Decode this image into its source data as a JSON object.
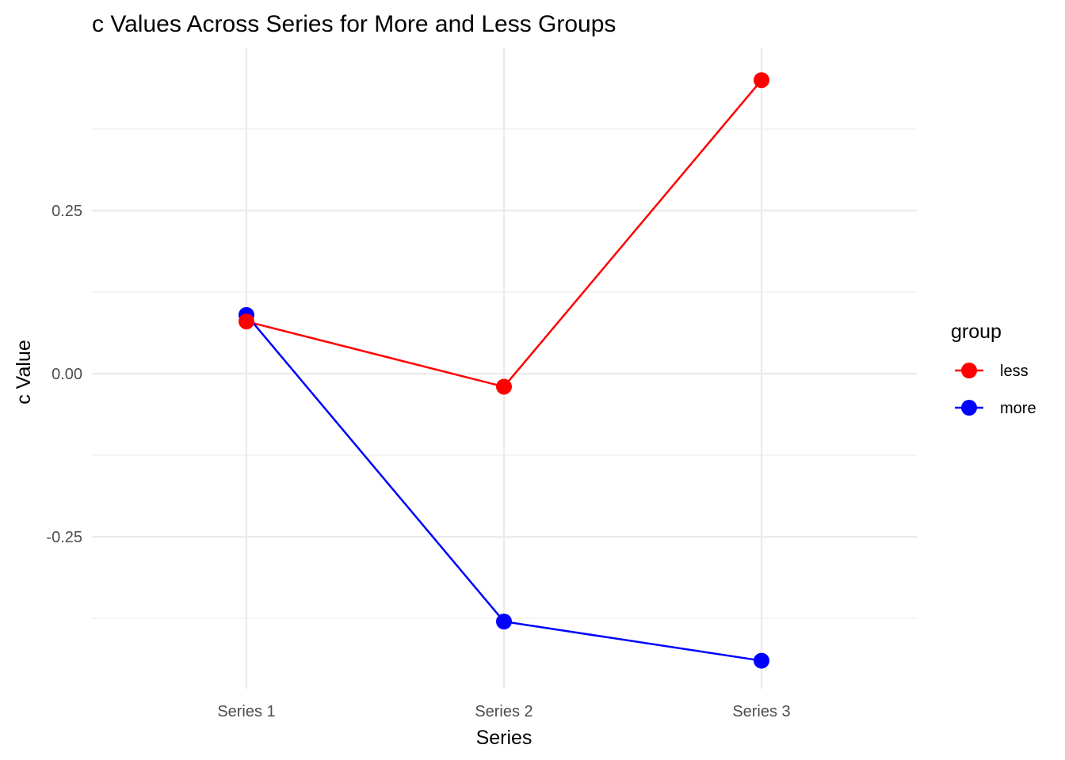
{
  "chart_data": {
    "type": "line",
    "title": "c Values Across Series for More and Less Groups",
    "xlabel": "Series",
    "ylabel": "c Value",
    "categories": [
      "Series 1",
      "Series 2",
      "Series 3"
    ],
    "y_ticks": [
      {
        "value": -0.25,
        "label": "-0.25"
      },
      {
        "value": 0.0,
        "label": "0.00"
      },
      {
        "value": 0.25,
        "label": "0.25"
      }
    ],
    "y_minor_ticks": [
      -0.375,
      -0.125,
      0.125,
      0.375
    ],
    "ylim": [
      -0.483,
      0.5
    ],
    "grid": true,
    "legend": {
      "title": "group",
      "placement": "right"
    },
    "series": [
      {
        "name": "less",
        "color": "#ff0000",
        "values": [
          0.08,
          -0.02,
          0.45
        ]
      },
      {
        "name": "more",
        "color": "#0000ff",
        "values": [
          0.09,
          -0.38,
          -0.44
        ]
      }
    ]
  }
}
